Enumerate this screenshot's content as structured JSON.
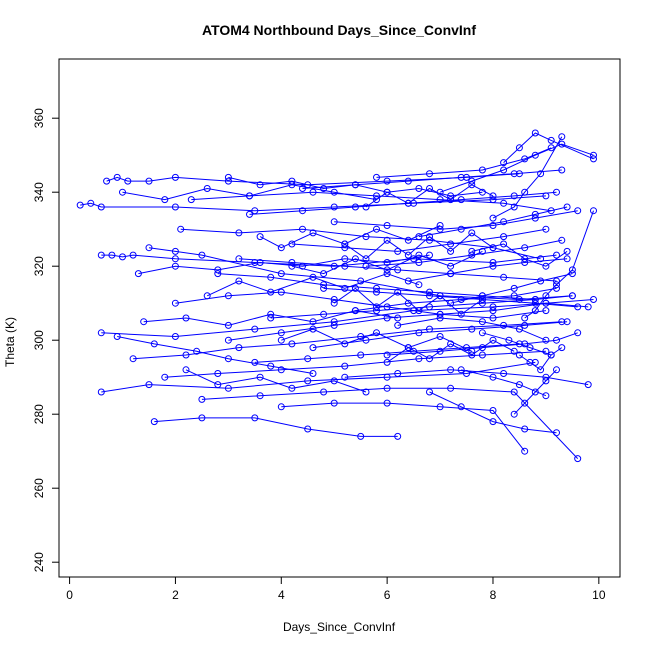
{
  "chart_data": {
    "type": "line",
    "title": "ATOM4 Northbound Days_Since_ConvInf",
    "xlabel": "Days_Since_ConvInf",
    "ylabel": "Theta (K)",
    "xlim": [
      -0.2,
      10.4
    ],
    "ylim": [
      236,
      376
    ],
    "x_ticks": [
      0,
      2,
      4,
      6,
      8,
      10
    ],
    "y_ticks": [
      240,
      260,
      280,
      300,
      320,
      340,
      360
    ],
    "grid": false,
    "legend": "none",
    "marker": "open-circle",
    "color": "#0000ff",
    "series": [
      {
        "x": [
          0.6,
          2.0,
          3.5,
          5.0,
          6.5,
          8.0,
          9.0,
          9.8
        ],
        "y": [
          302,
          301,
          303,
          305,
          308,
          309,
          310,
          309
        ]
      },
      {
        "x": [
          0.6,
          1.5,
          3.0,
          4.5,
          6.0,
          7.5,
          8.8
        ],
        "y": [
          286,
          288,
          287,
          289,
          290,
          291,
          294
        ]
      },
      {
        "x": [
          0.6,
          0.8,
          1.0,
          1.2,
          2.0,
          3.5,
          5.0,
          6.5,
          8.0,
          9.2
        ],
        "y": [
          323,
          323,
          322.5,
          323,
          322,
          321,
          320,
          322,
          321,
          323
        ]
      },
      {
        "x": [
          0.2,
          0.4,
          0.6,
          2.0,
          3.5,
          5.0,
          6.5,
          8.0,
          9.0
        ],
        "y": [
          336.5,
          337,
          336,
          336,
          335,
          336,
          337,
          338,
          339
        ]
      },
      {
        "x": [
          0.7,
          0.9,
          1.1,
          1.5,
          2.0,
          3.0,
          4.5,
          6.0,
          7.5,
          8.5
        ],
        "y": [
          343,
          344,
          343,
          343,
          344,
          343,
          342,
          343,
          344,
          345
        ]
      },
      {
        "x": [
          1.5,
          2.0,
          2.5,
          4.0,
          5.5,
          7.0,
          8.5,
          9.5
        ],
        "y": [
          325,
          324,
          323,
          318,
          316,
          312,
          311,
          312
        ]
      },
      {
        "x": [
          1.2,
          2.2,
          3.2,
          4.2,
          5.5,
          6.8,
          8.2,
          9.3
        ],
        "y": [
          295,
          296,
          298,
          299,
          301,
          303,
          304,
          305
        ]
      },
      {
        "x": [
          1.6,
          2.5,
          3.5,
          4.5,
          5.5,
          6.2
        ],
        "y": [
          278,
          279,
          279,
          276,
          274,
          274
        ]
      },
      {
        "x": [
          1.8,
          2.8,
          4.0,
          5.2,
          6.6,
          7.8,
          9.0
        ],
        "y": [
          290,
          291,
          292,
          293,
          295,
          296,
          297
        ]
      },
      {
        "x": [
          2.0,
          3.0,
          4.0,
          5.0,
          6.0,
          7.0,
          8.0,
          9.0
        ],
        "y": [
          310,
          312,
          313,
          311,
          309,
          307,
          306,
          308
        ]
      },
      {
        "x": [
          2.1,
          3.2,
          4.4,
          5.6,
          6.8,
          8.0,
          8.9
        ],
        "y": [
          330,
          329,
          330,
          328,
          327,
          325,
          322
        ]
      },
      {
        "x": [
          2.3,
          3.4,
          4.6,
          5.8,
          7.0,
          8.2,
          9.1
        ],
        "y": [
          338,
          339,
          340,
          339,
          338,
          337,
          335
        ]
      },
      {
        "x": [
          2.5,
          3.6,
          4.8,
          6.0,
          7.2,
          8.4,
          9.6
        ],
        "y": [
          284,
          285,
          286,
          287,
          287,
          286,
          268
        ]
      },
      {
        "x": [
          2.8,
          3.8,
          4.8,
          5.8,
          6.8,
          7.8,
          8.8
        ],
        "y": [
          318,
          317,
          315,
          314,
          313,
          312,
          311
        ]
      },
      {
        "x": [
          3.0,
          4.0,
          5.0,
          6.0,
          7.0,
          8.0,
          9.0,
          9.9
        ],
        "y": [
          300,
          302,
          304,
          306,
          307,
          308,
          310,
          311
        ]
      },
      {
        "x": [
          3.2,
          4.2,
          5.2,
          6.2,
          7.2,
          8.2,
          9.2
        ],
        "y": [
          322,
          321,
          320,
          319,
          318,
          317,
          316
        ]
      },
      {
        "x": [
          3.4,
          4.4,
          5.4,
          6.4,
          7.4,
          8.4,
          9.2
        ],
        "y": [
          334,
          335,
          336,
          337,
          338,
          339,
          340
        ]
      },
      {
        "x": [
          3.5,
          4.5,
          5.5,
          6.5,
          7.5,
          8.5
        ],
        "y": [
          294,
          295,
          296,
          297,
          298,
          299
        ]
      },
      {
        "x": [
          3.8,
          4.8,
          5.8,
          6.8,
          7.8,
          8.8,
          9.5
        ],
        "y": [
          306,
          307,
          308,
          309,
          310,
          311,
          312
        ]
      },
      {
        "x": [
          4.0,
          5.0,
          6.0,
          7.0,
          8.0,
          8.6
        ],
        "y": [
          282,
          283,
          283,
          282,
          281,
          270
        ]
      },
      {
        "x": [
          4.2,
          5.2,
          6.2,
          7.2,
          8.2,
          9.0
        ],
        "y": [
          326,
          325,
          324,
          326,
          328,
          330
        ]
      },
      {
        "x": [
          4.4,
          5.4,
          6.4,
          7.4,
          8.4,
          9.3
        ],
        "y": [
          341,
          342,
          343,
          344,
          345,
          346
        ]
      },
      {
        "x": [
          4.6,
          5.6,
          6.6,
          7.6,
          8.6,
          9.4
        ],
        "y": [
          298,
          300,
          302,
          303,
          304,
          305
        ]
      },
      {
        "x": [
          4.8,
          5.8,
          6.8,
          7.8,
          8.8,
          9.6
        ],
        "y": [
          314,
          313,
          312,
          311,
          310,
          309
        ]
      },
      {
        "x": [
          5.0,
          6.0,
          7.0,
          8.0,
          8.8,
          9.6
        ],
        "y": [
          332,
          331,
          330,
          331,
          333,
          335
        ]
      },
      {
        "x": [
          5.2,
          6.2,
          7.2,
          8.2,
          9.0,
          9.8
        ],
        "y": [
          290,
          291,
          292,
          291,
          290,
          288
        ]
      },
      {
        "x": [
          5.4,
          6.4,
          7.4,
          8.4,
          9.2
        ],
        "y": [
          308,
          310,
          311,
          312,
          314
        ]
      },
      {
        "x": [
          5.6,
          6.6,
          7.6,
          8.6,
          9.3
        ],
        "y": [
          320,
          321,
          323,
          325,
          327
        ]
      },
      {
        "x": [
          5.8,
          6.8,
          7.8,
          8.6,
          9.1
        ],
        "y": [
          344,
          345,
          346,
          349,
          352
        ]
      },
      {
        "x": [
          6.0,
          7.0,
          7.8,
          8.6,
          9.2,
          9.6
        ],
        "y": [
          296,
          297,
          298,
          299,
          300,
          302
        ]
      },
      {
        "x": [
          6.2,
          7.0,
          7.8,
          8.5,
          9.0
        ],
        "y": [
          304,
          306,
          305,
          303,
          300
        ]
      },
      {
        "x": [
          6.4,
          7.2,
          8.0,
          8.6,
          9.4
        ],
        "y": [
          316,
          318,
          320,
          321,
          322
        ]
      },
      {
        "x": [
          6.6,
          7.4,
          8.2,
          8.8,
          9.4
        ],
        "y": [
          328,
          330,
          332,
          334,
          336
        ]
      },
      {
        "x": [
          6.8,
          7.4,
          8.0,
          8.6,
          9.2
        ],
        "y": [
          286,
          282,
          278,
          276,
          275
        ]
      },
      {
        "x": [
          7.0,
          7.6,
          8.2,
          8.8,
          9.3,
          9.9
        ],
        "y": [
          340,
          343,
          346,
          350,
          353,
          350
        ]
      },
      {
        "x": [
          7.2,
          7.8,
          8.4,
          8.9,
          9.5
        ],
        "y": [
          310,
          312,
          314,
          316,
          318
        ]
      },
      {
        "x": [
          7.4,
          8.0,
          8.5,
          9.0
        ],
        "y": [
          292,
          290,
          288,
          285
        ]
      },
      {
        "x": [
          7.6,
          8.2,
          8.6,
          9.0,
          9.4
        ],
        "y": [
          324,
          326,
          322,
          320,
          324
        ]
      },
      {
        "x": [
          7.8,
          8.3,
          8.7,
          9.1
        ],
        "y": [
          302,
          300,
          298,
          296
        ]
      },
      {
        "x": [
          8.0,
          8.4,
          8.6,
          8.9,
          9.3
        ],
        "y": [
          333,
          336,
          340,
          345,
          355
        ]
      },
      {
        "x": [
          8.2,
          8.5,
          8.8,
          9.1,
          9.9
        ],
        "y": [
          348,
          352,
          356,
          354,
          349
        ]
      },
      {
        "x": [
          8.4,
          8.6,
          8.8,
          9.0,
          9.2
        ],
        "y": [
          280,
          283,
          286,
          289,
          292
        ]
      },
      {
        "x": [
          8.5,
          8.7,
          8.9,
          9.1,
          9.3
        ],
        "y": [
          296,
          294,
          292,
          296,
          298
        ]
      },
      {
        "x": [
          8.6,
          8.8,
          9.0,
          9.2,
          9.5,
          9.9
        ],
        "y": [
          306,
          308,
          312,
          315,
          319,
          335
        ]
      },
      {
        "x": [
          1.0,
          1.8,
          2.6,
          3.4,
          4.2,
          5.0,
          5.8
        ],
        "y": [
          340,
          338,
          341,
          339,
          342,
          340,
          338
        ]
      },
      {
        "x": [
          1.4,
          2.2,
          3.0,
          3.8,
          4.6,
          5.4,
          6.2
        ],
        "y": [
          305,
          306,
          304,
          307,
          305,
          308,
          306
        ]
      },
      {
        "x": [
          2.2,
          2.8,
          3.6,
          4.2,
          5.0,
          5.6
        ],
        "y": [
          292,
          288,
          290,
          287,
          289,
          286
        ]
      },
      {
        "x": [
          2.6,
          3.2,
          3.8,
          4.6,
          5.2,
          6.0,
          6.6
        ],
        "y": [
          312,
          316,
          313,
          317,
          314,
          318,
          315
        ]
      },
      {
        "x": [
          3.6,
          4.0,
          4.6,
          5.2,
          5.8,
          6.4,
          7.0
        ],
        "y": [
          328,
          325,
          329,
          326,
          330,
          327,
          331
        ]
      },
      {
        "x": [
          4.0,
          4.6,
          5.2,
          5.8,
          6.4,
          7.0,
          7.6
        ],
        "y": [
          300,
          303,
          299,
          302,
          298,
          301,
          297
        ]
      },
      {
        "x": [
          4.2,
          4.8,
          5.4,
          6.0,
          6.6,
          7.2,
          7.8
        ],
        "y": [
          320,
          318,
          322,
          319,
          323,
          320,
          324
        ]
      },
      {
        "x": [
          5.0,
          5.4,
          5.8,
          6.2,
          6.6,
          7.0,
          7.4,
          7.8
        ],
        "y": [
          310,
          314,
          309,
          313,
          308,
          312,
          307,
          311
        ]
      },
      {
        "x": [
          5.2,
          5.6,
          6.0,
          6.4,
          6.8,
          7.2,
          7.6,
          8.0
        ],
        "y": [
          326,
          322,
          327,
          323,
          328,
          324,
          329,
          325
        ]
      },
      {
        "x": [
          5.6,
          6.0,
          6.4,
          6.8,
          7.2,
          7.6,
          8.0
        ],
        "y": [
          336,
          340,
          337,
          341,
          338,
          342,
          339
        ]
      },
      {
        "x": [
          6.0,
          6.4,
          6.8,
          7.2,
          7.6,
          8.0,
          8.4
        ],
        "y": [
          294,
          298,
          295,
          299,
          296,
          300,
          297
        ]
      },
      {
        "x": [
          0.9,
          1.6,
          2.4,
          3.0,
          3.8,
          4.6
        ],
        "y": [
          301,
          299,
          297,
          295,
          293,
          291
        ]
      },
      {
        "x": [
          1.3,
          2.0,
          2.8,
          3.6,
          4.4,
          5.2,
          6.0,
          6.8
        ],
        "y": [
          318,
          320,
          319,
          321,
          320,
          322,
          321,
          323
        ]
      },
      {
        "x": [
          3.0,
          3.6,
          4.2,
          4.8,
          5.4,
          6.0,
          6.6,
          7.2,
          7.8
        ],
        "y": [
          344,
          342,
          343,
          341,
          342,
          340,
          341,
          339,
          340
        ]
      }
    ]
  }
}
